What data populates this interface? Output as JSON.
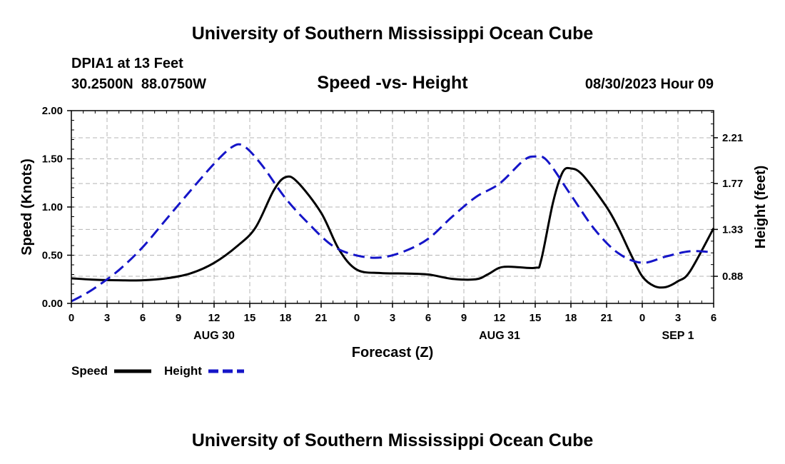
{
  "header": {
    "title": "University of Southern Mississippi Ocean Cube",
    "station": "DPIA1 at 13 Feet",
    "coords": "30.2500N  88.0750W",
    "subtitle": "Speed -vs- Height",
    "datetime": "08/30/2023 Hour 09"
  },
  "footer": {
    "title": "University of Southern Mississippi Ocean Cube"
  },
  "chart_data": {
    "type": "line",
    "title": "Speed -vs- Height",
    "xlabel": "Forecast (Z)",
    "ylabel_left": "Speed (Knots)",
    "ylabel_right": "Height (feet)",
    "x_range_hours": [
      0,
      54
    ],
    "x_tick_hours": [
      0,
      3,
      6,
      9,
      12,
      15,
      18,
      21,
      24,
      27,
      30,
      33,
      36,
      39,
      42,
      45,
      48,
      51,
      54
    ],
    "x_tick_labels": [
      "0",
      "3",
      "6",
      "9",
      "12",
      "15",
      "18",
      "21",
      "0",
      "3",
      "6",
      "9",
      "12",
      "15",
      "18",
      "21",
      "0",
      "3",
      "6"
    ],
    "date_labels": [
      {
        "hour": 12,
        "label": "AUG 30"
      },
      {
        "hour": 36,
        "label": "AUG 31"
      },
      {
        "hour": 51,
        "label": "SEP 1"
      }
    ],
    "left_axis": {
      "range": [
        0,
        2.0
      ],
      "ticks": [
        0,
        0.5,
        1.0,
        1.5,
        2.0
      ],
      "tick_labels": [
        "0.00",
        "0.50",
        "1.00",
        "1.50",
        "2.00"
      ]
    },
    "right_axis": {
      "range": [
        0.62,
        2.47
      ],
      "ticks": [
        0.88,
        1.33,
        1.77,
        2.21
      ],
      "tick_labels": [
        "0.88",
        "1.33",
        "1.77",
        "2.21"
      ]
    },
    "grid": true,
    "series": [
      {
        "name": "Speed",
        "axis": "left",
        "color": "#000000",
        "dash": "solid",
        "x": [
          0,
          2,
          4,
          6,
          8,
          10,
          12,
          14,
          15.5,
          17,
          18,
          19,
          21,
          22.5,
          24,
          26,
          28,
          30,
          32,
          34,
          35,
          36,
          37,
          39,
          39.5,
          40.5,
          41.3,
          42,
          43,
          45,
          46,
          47,
          48,
          49,
          50,
          51,
          52,
          54
        ],
        "y": [
          0.26,
          0.245,
          0.24,
          0.24,
          0.26,
          0.31,
          0.42,
          0.6,
          0.79,
          1.17,
          1.31,
          1.26,
          0.94,
          0.56,
          0.35,
          0.315,
          0.31,
          0.3,
          0.255,
          0.25,
          0.3,
          0.37,
          0.38,
          0.37,
          0.45,
          1.05,
          1.36,
          1.4,
          1.33,
          1.0,
          0.78,
          0.52,
          0.28,
          0.18,
          0.17,
          0.23,
          0.33,
          0.78
        ]
      },
      {
        "name": "Height",
        "axis": "right",
        "color": "#1515c8",
        "dash": "dashed",
        "x": [
          0,
          1,
          2,
          4,
          6,
          8,
          10,
          12,
          13.5,
          14.5,
          16,
          18,
          20,
          22,
          24,
          26,
          28,
          30,
          32,
          34,
          36,
          38,
          39,
          40,
          42,
          44,
          46,
          48,
          50,
          52,
          54
        ],
        "y": [
          0.64,
          0.7,
          0.77,
          0.94,
          1.16,
          1.43,
          1.7,
          1.96,
          2.12,
          2.13,
          1.95,
          1.63,
          1.38,
          1.17,
          1.08,
          1.06,
          1.12,
          1.24,
          1.45,
          1.64,
          1.77,
          1.99,
          2.03,
          1.99,
          1.66,
          1.33,
          1.1,
          1.01,
          1.07,
          1.12,
          1.11
        ]
      }
    ],
    "legend": {
      "placement": "bottom-left",
      "entries": [
        "Speed",
        "Height"
      ]
    }
  }
}
